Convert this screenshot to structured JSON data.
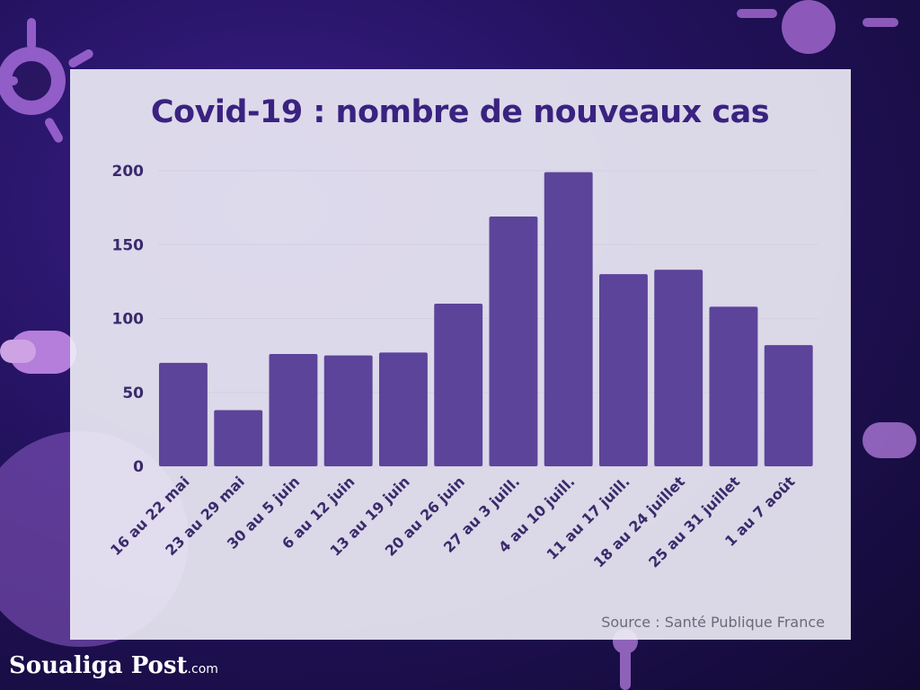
{
  "title": "Covid-19 : nombre de nouveaux cas",
  "source": "Source : Santé Publique France",
  "logo": {
    "name": "Soualiga Post",
    "domain": ".com"
  },
  "colors": {
    "bar": "#5b449a",
    "title": "#3a2280",
    "axis_text": "#3a2a6b",
    "grid": "#d4d0e2"
  },
  "chart_data": {
    "type": "bar",
    "title": "Covid-19 : nombre de nouveaux cas",
    "xlabel": "",
    "ylabel": "",
    "categories": [
      "16 au 22 mai",
      "23 au 29 mai",
      "30 au 5 juin",
      "6 au 12 juin",
      "13 au 19 juin",
      "20 au 26 juin",
      "27 au 3 juill.",
      "4 au 10 juill.",
      "11 au 17 juill.",
      "18 au 24 juillet",
      "25 au 31 juillet",
      "1 au 7 août"
    ],
    "values": [
      70,
      38,
      76,
      75,
      77,
      110,
      169,
      199,
      130,
      133,
      108,
      82
    ],
    "ylim": [
      0,
      200
    ],
    "yticks": [
      0,
      50,
      100,
      150,
      200
    ],
    "grid": true,
    "legend": "none"
  }
}
